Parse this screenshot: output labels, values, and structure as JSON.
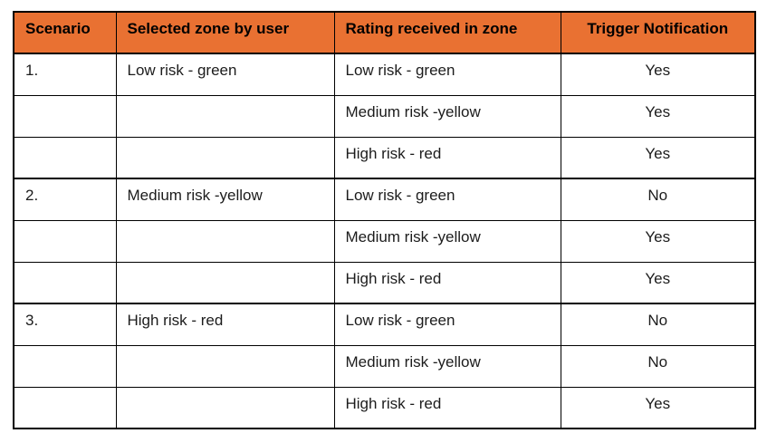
{
  "table": {
    "columns": [
      {
        "label": "Scenario"
      },
      {
        "label": "Selected zone by user"
      },
      {
        "label": "Rating received in zone"
      },
      {
        "label": "Trigger Notification"
      }
    ],
    "rows": [
      {
        "scenario": "1.",
        "selected_zone": "Low risk - green",
        "rating": "Low risk - green",
        "trigger": "Yes"
      },
      {
        "scenario": "",
        "selected_zone": "",
        "rating": "Medium risk -yellow",
        "trigger": "Yes"
      },
      {
        "scenario": "",
        "selected_zone": "",
        "rating": "High risk - red",
        "trigger": "Yes"
      },
      {
        "scenario": "2.",
        "selected_zone": "Medium risk -yellow",
        "rating": "Low risk - green",
        "trigger": "No"
      },
      {
        "scenario": "",
        "selected_zone": "",
        "rating": "Medium risk -yellow",
        "trigger": "Yes"
      },
      {
        "scenario": "",
        "selected_zone": "",
        "rating": "High risk - red",
        "trigger": "Yes"
      },
      {
        "scenario": "3.",
        "selected_zone": "High risk - red",
        "rating": "Low risk - green",
        "trigger": "No"
      },
      {
        "scenario": "",
        "selected_zone": "",
        "rating": "Medium risk -yellow",
        "trigger": "No"
      },
      {
        "scenario": "",
        "selected_zone": "",
        "rating": "High risk - red",
        "trigger": "Yes"
      }
    ]
  },
  "colors": {
    "header_bg": "#E97132",
    "header_text": "#000000",
    "body_text": "#1C1C1C",
    "border": "#000000"
  }
}
